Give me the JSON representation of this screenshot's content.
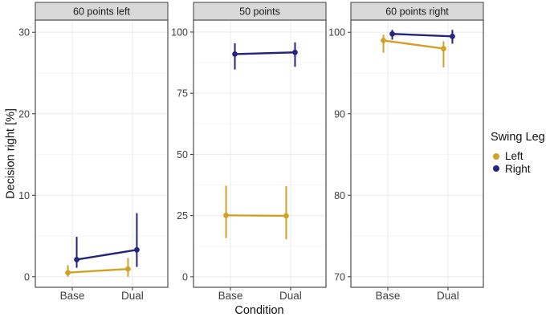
{
  "chart_data": {
    "type": "pointrange-line",
    "title": "",
    "xlabel": "Condition",
    "ylabel": "Decision right [%]",
    "x_categories": [
      "Base",
      "Dual"
    ],
    "legend": {
      "title": "Swing Leg",
      "position": "right",
      "items": [
        {
          "label": "Left",
          "color": "#D2A126"
        },
        {
          "label": "Right",
          "color": "#24247E"
        }
      ]
    },
    "style": {
      "strip_fill": "#D9D9D9",
      "strip_border": "#4D4D4D",
      "panel_border": "#4D4D4D",
      "grid_major": "#EBEBEB",
      "grid_minor": "#F5F5F5",
      "tick_color": "#333333",
      "tick_label_color": "#404040",
      "panel_background": "#FFFFFF"
    },
    "facets": [
      {
        "label": "60 points left",
        "y_ticks": [
          0,
          10,
          20,
          30
        ],
        "y_minor": [
          5,
          15,
          25
        ],
        "y_domain": [
          -1.3,
          31.5
        ],
        "series": [
          {
            "name": "Left",
            "color": "#D2A126",
            "points": [
              {
                "x": "Base",
                "y": 0.5,
                "ymin": 0.0,
                "ymax": 1.4
              },
              {
                "x": "Dual",
                "y": 0.95,
                "ymin": 0.0,
                "ymax": 2.3
              }
            ]
          },
          {
            "name": "Right",
            "color": "#24247E",
            "points": [
              {
                "x": "Base",
                "y": 2.1,
                "ymin": 1.1,
                "ymax": 4.9
              },
              {
                "x": "Dual",
                "y": 3.3,
                "ymin": 1.2,
                "ymax": 7.8
              }
            ]
          }
        ]
      },
      {
        "label": "50 points",
        "y_ticks": [
          0,
          25,
          50,
          75,
          100
        ],
        "y_minor": [
          12.5,
          37.5,
          62.5,
          87.5
        ],
        "y_domain": [
          -4.3,
          104.9
        ],
        "series": [
          {
            "name": "Left",
            "color": "#D2A126",
            "points": [
              {
                "x": "Base",
                "y": 25.1,
                "ymin": 15.8,
                "ymax": 37.2
              },
              {
                "x": "Dual",
                "y": 24.9,
                "ymin": 15.3,
                "ymax": 37.0
              }
            ]
          },
          {
            "name": "Right",
            "color": "#24247E",
            "points": [
              {
                "x": "Base",
                "y": 91.0,
                "ymin": 84.7,
                "ymax": 95.4
              },
              {
                "x": "Dual",
                "y": 91.7,
                "ymin": 85.8,
                "ymax": 95.8
              }
            ]
          }
        ]
      },
      {
        "label": "60 points right",
        "y_ticks": [
          70,
          80,
          90,
          100
        ],
        "y_minor": [
          75,
          85,
          95
        ],
        "y_domain": [
          68.7,
          101.5
        ],
        "series": [
          {
            "name": "Left",
            "color": "#D2A126",
            "points": [
              {
                "x": "Base",
                "y": 99.0,
                "ymin": 97.5,
                "ymax": 99.7
              },
              {
                "x": "Dual",
                "y": 98.0,
                "ymin": 95.7,
                "ymax": 98.9
              }
            ]
          },
          {
            "name": "Right",
            "color": "#24247E",
            "points": [
              {
                "x": "Base",
                "y": 99.8,
                "ymin": 99.1,
                "ymax": 100.3
              },
              {
                "x": "Dual",
                "y": 99.5,
                "ymin": 98.6,
                "ymax": 100.3
              }
            ]
          }
        ]
      }
    ]
  }
}
